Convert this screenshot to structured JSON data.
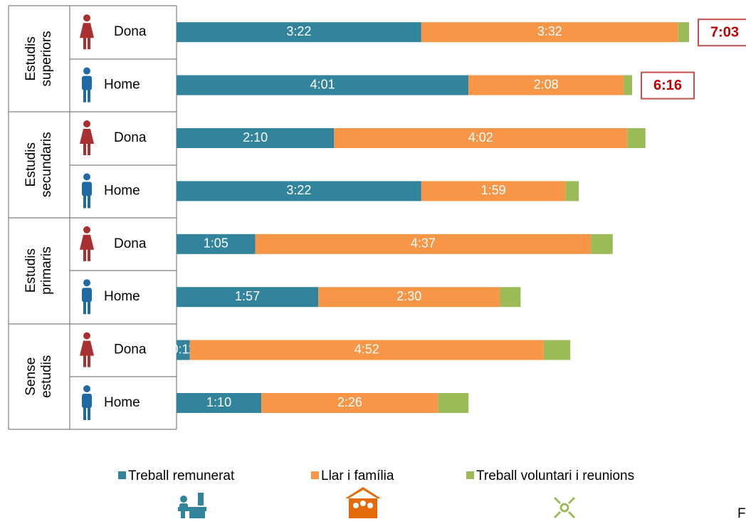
{
  "chart_data": {
    "type": "bar",
    "orientation": "horizontal",
    "stacked": true,
    "groups": [
      "Estudis superiors",
      "Estudis secundaris",
      "Estudis primaris",
      "Sense estudis"
    ],
    "categories": [
      "Dona",
      "Home",
      "Dona",
      "Home",
      "Dona",
      "Home",
      "Dona",
      "Home"
    ],
    "xlim": [
      0,
      470
    ],
    "series": [
      {
        "name": "Treball remunerat",
        "color": "#31849b",
        "values": [
          202,
          241,
          130,
          202,
          65,
          117,
          11,
          70
        ],
        "value_labels": [
          "3:22",
          "4:01",
          "2:10",
          "3:22",
          "1:05",
          "1:57",
          "0:11",
          "1:10"
        ]
      },
      {
        "name": "Llar i família",
        "color": "#f79646",
        "values": [
          212,
          128,
          242,
          119,
          277,
          150,
          292,
          146
        ],
        "value_labels": [
          "3:32",
          "2:08",
          "4:02",
          "1:59",
          "4:37",
          "2:30",
          "4:52",
          "2:26"
        ]
      },
      {
        "name": "Treball voluntari i reunions",
        "color": "#9bbb59",
        "values": [
          9,
          7,
          15,
          11,
          18,
          17,
          22,
          25
        ]
      }
    ],
    "annotations": [
      "7:03",
      "6:16"
    ],
    "source": "F"
  }
}
